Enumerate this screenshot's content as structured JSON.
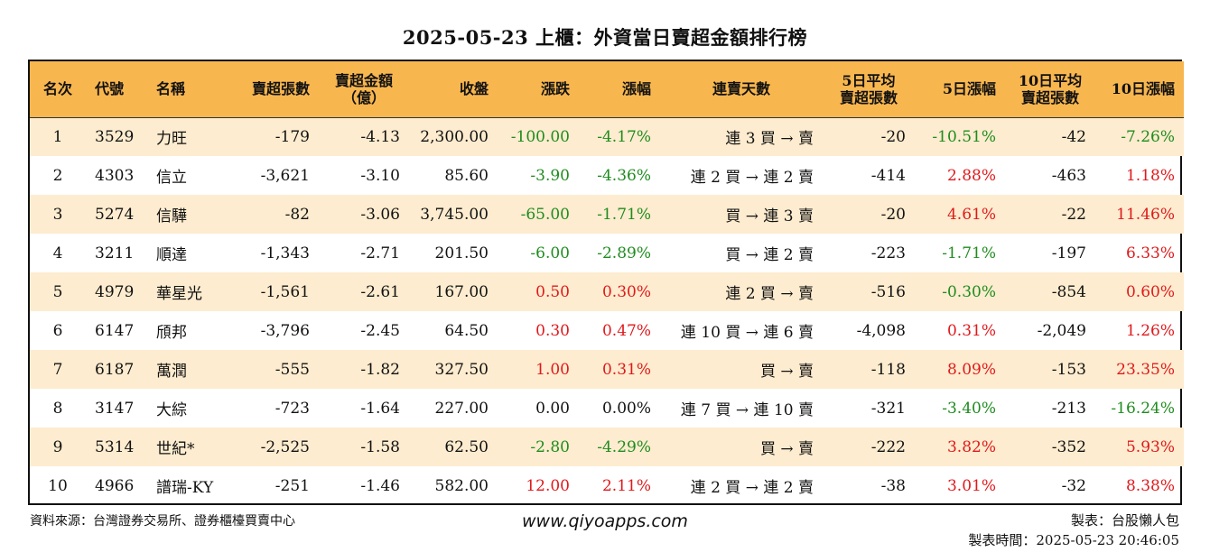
{
  "title": "2025-05-23 上櫃：外資當日賣超金額排行榜",
  "headers": {
    "rank": "名次",
    "code": "代號",
    "name": "名稱",
    "sell_shares": "賣超張數",
    "sell_amount_1": "賣超金額",
    "sell_amount_2": "（億）",
    "close": "收盤",
    "change": "漲跌",
    "change_pct": "漲幅",
    "streak": "連賣天數",
    "avg5_1": "5日平均",
    "avg5_2": "賣超張數",
    "chg5": "5日漲幅",
    "avg10_1": "10日平均",
    "avg10_2": "賣超張數",
    "chg10": "10日漲幅"
  },
  "rows": [
    {
      "rank": "1",
      "code": "3529",
      "name": "力旺",
      "sell_shares": "-179",
      "sell_amount": "-4.13",
      "close": "2,300.00",
      "change": "-100.00",
      "change_pct": "-4.17%",
      "streak": "連 3 買 → 賣",
      "avg5": "-20",
      "chg5": "-10.51%",
      "avg10": "-42",
      "chg10": "-7.26%",
      "c_change": "green",
      "c_pct": "green",
      "c_chg5": "green",
      "c_chg10": "green"
    },
    {
      "rank": "2",
      "code": "4303",
      "name": "信立",
      "sell_shares": "-3,621",
      "sell_amount": "-3.10",
      "close": "85.60",
      "change": "-3.90",
      "change_pct": "-4.36%",
      "streak": "連 2 買 → 連 2 賣",
      "avg5": "-414",
      "chg5": "2.88%",
      "avg10": "-463",
      "chg10": "1.18%",
      "c_change": "green",
      "c_pct": "green",
      "c_chg5": "red",
      "c_chg10": "red"
    },
    {
      "rank": "3",
      "code": "5274",
      "name": "信驊",
      "sell_shares": "-82",
      "sell_amount": "-3.06",
      "close": "3,745.00",
      "change": "-65.00",
      "change_pct": "-1.71%",
      "streak": "買 → 連 3 賣",
      "avg5": "-20",
      "chg5": "4.61%",
      "avg10": "-22",
      "chg10": "11.46%",
      "c_change": "green",
      "c_pct": "green",
      "c_chg5": "red",
      "c_chg10": "red"
    },
    {
      "rank": "4",
      "code": "3211",
      "name": "順達",
      "sell_shares": "-1,343",
      "sell_amount": "-2.71",
      "close": "201.50",
      "change": "-6.00",
      "change_pct": "-2.89%",
      "streak": "買 → 連 2 賣",
      "avg5": "-223",
      "chg5": "-1.71%",
      "avg10": "-197",
      "chg10": "6.33%",
      "c_change": "green",
      "c_pct": "green",
      "c_chg5": "green",
      "c_chg10": "red"
    },
    {
      "rank": "5",
      "code": "4979",
      "name": "華星光",
      "sell_shares": "-1,561",
      "sell_amount": "-2.61",
      "close": "167.00",
      "change": "0.50",
      "change_pct": "0.30%",
      "streak": "連 2 買 → 賣",
      "avg5": "-516",
      "chg5": "-0.30%",
      "avg10": "-854",
      "chg10": "0.60%",
      "c_change": "red",
      "c_pct": "red",
      "c_chg5": "green",
      "c_chg10": "red"
    },
    {
      "rank": "6",
      "code": "6147",
      "name": "頎邦",
      "sell_shares": "-3,796",
      "sell_amount": "-2.45",
      "close": "64.50",
      "change": "0.30",
      "change_pct": "0.47%",
      "streak": "連 10 買 → 連 6 賣",
      "avg5": "-4,098",
      "chg5": "0.31%",
      "avg10": "-2,049",
      "chg10": "1.26%",
      "c_change": "red",
      "c_pct": "red",
      "c_chg5": "red",
      "c_chg10": "red"
    },
    {
      "rank": "7",
      "code": "6187",
      "name": "萬潤",
      "sell_shares": "-555",
      "sell_amount": "-1.82",
      "close": "327.50",
      "change": "1.00",
      "change_pct": "0.31%",
      "streak": "買 → 賣",
      "avg5": "-118",
      "chg5": "8.09%",
      "avg10": "-153",
      "chg10": "23.35%",
      "c_change": "red",
      "c_pct": "red",
      "c_chg5": "red",
      "c_chg10": "red"
    },
    {
      "rank": "8",
      "code": "3147",
      "name": "大綜",
      "sell_shares": "-723",
      "sell_amount": "-1.64",
      "close": "227.00",
      "change": "0.00",
      "change_pct": "0.00%",
      "streak": "連 7 買 → 連 10 賣",
      "avg5": "-321",
      "chg5": "-3.40%",
      "avg10": "-213",
      "chg10": "-16.24%",
      "c_change": "black",
      "c_pct": "black",
      "c_chg5": "green",
      "c_chg10": "green"
    },
    {
      "rank": "9",
      "code": "5314",
      "name": "世紀*",
      "sell_shares": "-2,525",
      "sell_amount": "-1.58",
      "close": "62.50",
      "change": "-2.80",
      "change_pct": "-4.29%",
      "streak": "買 → 賣",
      "avg5": "-222",
      "chg5": "3.82%",
      "avg10": "-352",
      "chg10": "5.93%",
      "c_change": "green",
      "c_pct": "green",
      "c_chg5": "red",
      "c_chg10": "red"
    },
    {
      "rank": "10",
      "code": "4966",
      "name": "譜瑞-KY",
      "sell_shares": "-251",
      "sell_amount": "-1.46",
      "close": "582.00",
      "change": "12.00",
      "change_pct": "2.11%",
      "streak": "連 2 買 → 連 2 賣",
      "avg5": "-38",
      "chg5": "3.01%",
      "avg10": "-32",
      "chg10": "8.38%",
      "c_change": "red",
      "c_pct": "red",
      "c_chg5": "red",
      "c_chg10": "red"
    }
  ],
  "colors": {
    "header_bg": "#f8b64f",
    "alt_row_bg": "#fdeccf",
    "up": "#e0191b",
    "down": "#1f8c1f"
  },
  "footer": {
    "source": "資料來源：台灣證券交易所、證券櫃檯買賣中心",
    "website": "www.qiyoapps.com",
    "maker": "製表：台股懶人包",
    "time": "製表時間：2025-05-23 20:46:05"
  }
}
